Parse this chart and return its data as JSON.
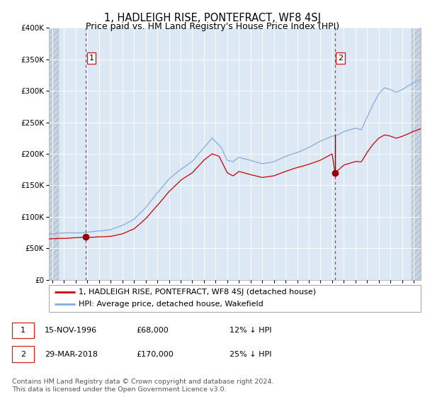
{
  "title": "1, HADLEIGH RISE, PONTEFRACT, WF8 4SJ",
  "subtitle": "Price paid vs. HM Land Registry's House Price Index (HPI)",
  "legend_line1": "1, HADLEIGH RISE, PONTEFRACT, WF8 4SJ (detached house)",
  "legend_line2": "HPI: Average price, detached house, Wakefield",
  "annotation1_label": "1",
  "annotation1_date": "15-NOV-1996",
  "annotation1_price": "£68,000",
  "annotation1_hpi": "12% ↓ HPI",
  "annotation1_year": 1996.88,
  "annotation1_value": 68000,
  "annotation2_label": "2",
  "annotation2_date": "29-MAR-2018",
  "annotation2_price": "£170,000",
  "annotation2_hpi": "25% ↓ HPI",
  "annotation2_year": 2018.24,
  "annotation2_value": 170000,
  "footer": "Contains HM Land Registry data © Crown copyright and database right 2024.\nThis data is licensed under the Open Government Licence v3.0.",
  "red_line_color": "#cc0000",
  "blue_line_color": "#88aadd",
  "marker_color": "#990000",
  "dashed_vline_color": "#cc3333",
  "bg_color": "#dce9f5",
  "hatch_color": "#c8d4e3",
  "grid_color": "#ffffff",
  "border_color": "#bbbbbb",
  "ylim": [
    0,
    400000
  ],
  "xlim_start": 1993.7,
  "xlim_end": 2025.6,
  "title_fontsize": 10.5,
  "subtitle_fontsize": 9,
  "legend_fontsize": 8,
  "footer_fontsize": 6.8
}
